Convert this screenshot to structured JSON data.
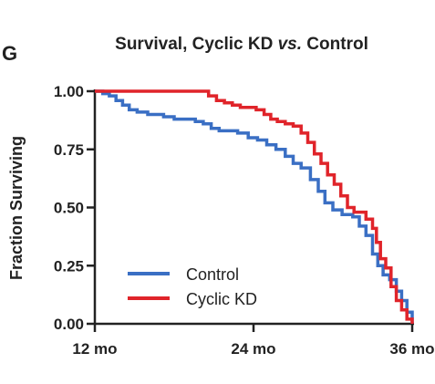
{
  "panel_label": "G",
  "chart_data": {
    "type": "line",
    "title": "Survival, Cyclic KD vs. Control",
    "title_parts": {
      "pre": "Survival, Cyclic KD ",
      "italic": "vs.",
      "post": " Control"
    },
    "xlabel": "",
    "ylabel": "Fraction Surviving",
    "xlim": [
      12,
      36
    ],
    "ylim": [
      0,
      1
    ],
    "x_unit": "mo",
    "x_ticks": [
      12,
      24,
      36
    ],
    "x_tick_labels": [
      "12 mo",
      "24 mo",
      "36 mo"
    ],
    "y_ticks": [
      0,
      0.25,
      0.5,
      0.75,
      1.0
    ],
    "y_tick_labels": [
      "0.00",
      "0.25",
      "0.50",
      "0.75",
      "1.00"
    ],
    "grid": false,
    "legend": "lower-left",
    "series": [
      {
        "name": "Control",
        "color": "#3a6fc4",
        "x": [
          12.0,
          12.6,
          13.1,
          13.6,
          14.1,
          14.6,
          15.2,
          16.0,
          16.6,
          17.2,
          18.0,
          18.8,
          19.6,
          20.2,
          20.8,
          21.4,
          22.0,
          22.8,
          23.6,
          24.3,
          25.0,
          25.7,
          26.4,
          27.0,
          27.6,
          28.3,
          28.9,
          29.4,
          30.0,
          30.7,
          31.5,
          32.0,
          32.5,
          33.0,
          33.4,
          33.8,
          34.3,
          34.8,
          35.2,
          35.6,
          36.0
        ],
        "y": [
          1.0,
          0.99,
          0.98,
          0.96,
          0.94,
          0.92,
          0.91,
          0.9,
          0.9,
          0.89,
          0.88,
          0.88,
          0.87,
          0.86,
          0.84,
          0.83,
          0.83,
          0.82,
          0.8,
          0.79,
          0.77,
          0.75,
          0.72,
          0.69,
          0.67,
          0.62,
          0.57,
          0.52,
          0.49,
          0.47,
          0.46,
          0.42,
          0.38,
          0.3,
          0.25,
          0.21,
          0.19,
          0.14,
          0.1,
          0.05,
          0.0
        ]
      },
      {
        "name": "Cyclic KD",
        "color": "#e0242a",
        "x": [
          12.0,
          20.0,
          20.6,
          21.2,
          21.8,
          22.4,
          23.0,
          23.6,
          24.2,
          24.8,
          25.3,
          25.8,
          26.4,
          27.0,
          27.6,
          28.1,
          28.6,
          29.1,
          29.6,
          30.1,
          30.6,
          31.1,
          31.6,
          32.1,
          32.5,
          33.0,
          33.3,
          33.6,
          34.0,
          34.4,
          34.8,
          35.2,
          35.6,
          36.0
        ],
        "y": [
          1.0,
          1.0,
          0.98,
          0.96,
          0.95,
          0.94,
          0.93,
          0.93,
          0.92,
          0.9,
          0.88,
          0.87,
          0.86,
          0.85,
          0.82,
          0.78,
          0.73,
          0.69,
          0.64,
          0.6,
          0.55,
          0.5,
          0.48,
          0.48,
          0.45,
          0.41,
          0.35,
          0.28,
          0.24,
          0.16,
          0.1,
          0.06,
          0.02,
          0.0
        ]
      }
    ]
  }
}
